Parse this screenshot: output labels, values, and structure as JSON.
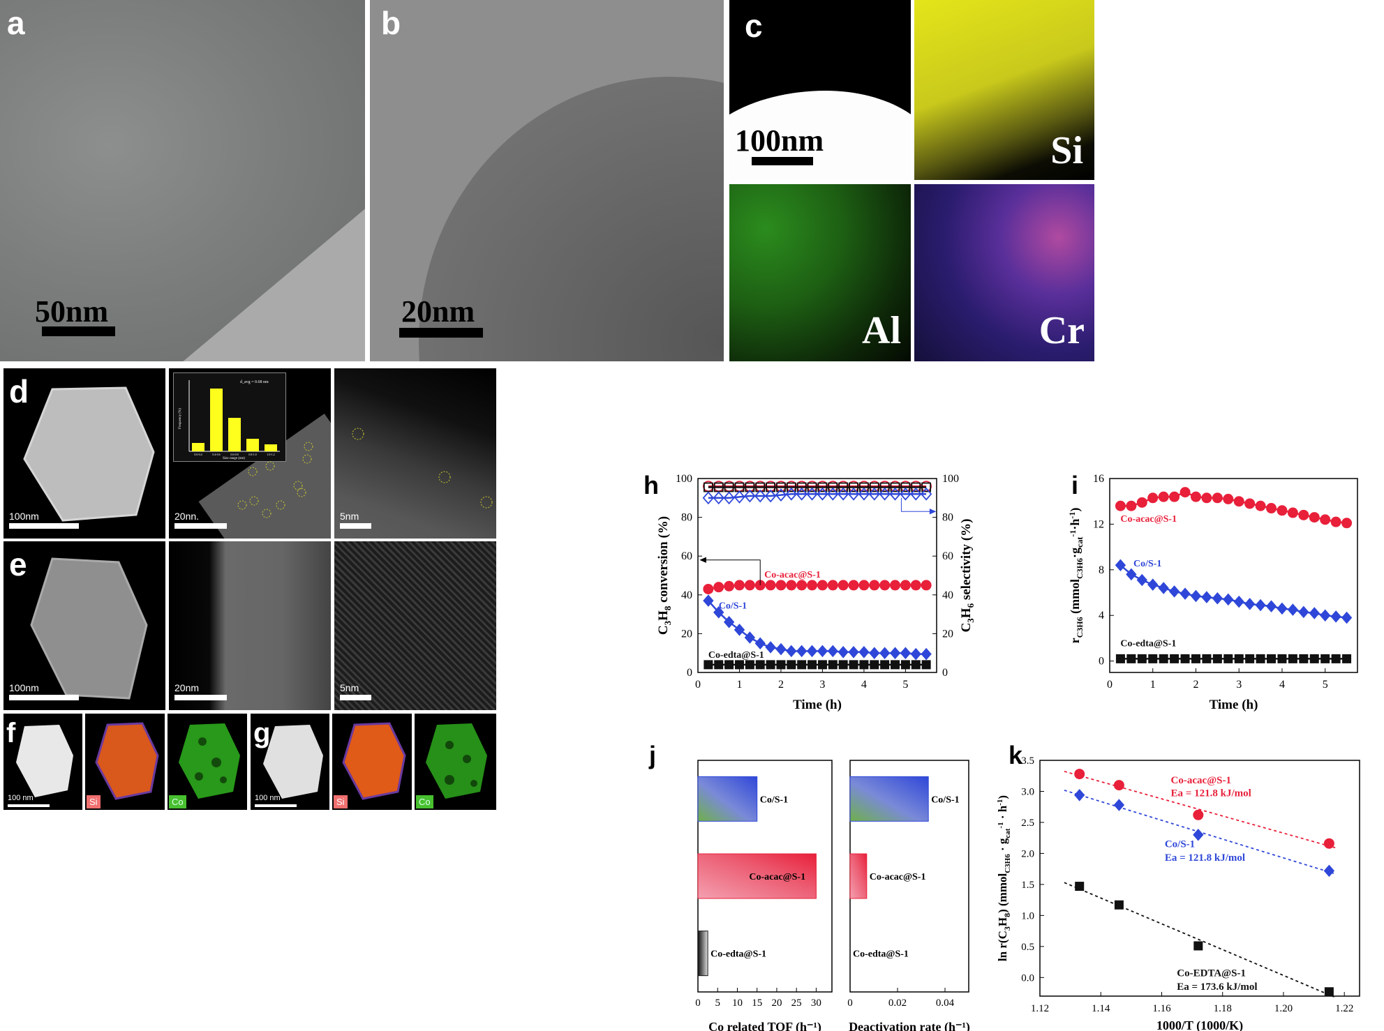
{
  "panels": {
    "a": {
      "label": "a",
      "scale": "50nm"
    },
    "b": {
      "label": "b",
      "scale": "20nm"
    },
    "c": {
      "label": "c",
      "scale": "100nm",
      "elements": [
        "Si",
        "Al",
        "Cr"
      ]
    },
    "d": {
      "label": "d",
      "scales": [
        "100nm",
        "20nn.",
        "5nm"
      ],
      "inset": {
        "annotation": "d_avg = 0.68 nm",
        "ylabel": "Frequency (%)",
        "xlabel": "Size range (nm)",
        "categories": [
          "0.0-0.4",
          "0.4-0.6",
          "0.6-0.8",
          "0.8-1.0",
          "1.0-1.2"
        ],
        "values": [
          6,
          45,
          24,
          9,
          5
        ]
      }
    },
    "e": {
      "label": "e",
      "scales": [
        "100nm",
        "20nm",
        "5nm"
      ]
    },
    "f": {
      "label": "f",
      "scale": "100 nm",
      "tags": [
        "Si",
        "Co"
      ]
    },
    "g": {
      "label": "g",
      "scale": "100 nm",
      "tags": [
        "Si",
        "Co"
      ]
    },
    "h": {
      "label": "h"
    },
    "i": {
      "label": "i"
    },
    "j": {
      "label": "j"
    },
    "k": {
      "label": "k"
    }
  },
  "colors": {
    "red": "#e8203a",
    "blue": "#2f47d8",
    "black": "#111111",
    "yellow": "#ffff1e",
    "green": "#3ec82a",
    "orange": "#e06a1c"
  },
  "chart_data": [
    {
      "id": "h",
      "type": "line",
      "xlabel": "Time (h)",
      "ylabel_left": "C3H8 conversion (%)",
      "ylabel_right": "C3H6 selectivity (%)",
      "xlim": [
        0,
        5.75
      ],
      "ylim": [
        0,
        100
      ],
      "xticks": [
        0,
        1,
        2,
        3,
        4,
        5
      ],
      "yticks": [
        0,
        20,
        40,
        60,
        80,
        100
      ],
      "x": [
        0.25,
        0.5,
        0.75,
        1.0,
        1.25,
        1.5,
        1.75,
        2.0,
        2.25,
        2.5,
        2.75,
        3.0,
        3.25,
        3.5,
        3.75,
        4.0,
        4.25,
        4.5,
        4.75,
        5.0,
        5.25,
        5.5
      ],
      "series": [
        {
          "name": "Co-acac@S-1",
          "axis": "left",
          "color": "#e8203a",
          "marker": "circle",
          "values": [
            43,
            44,
            44.5,
            45,
            45,
            45,
            45,
            45,
            45,
            45,
            45,
            45,
            45,
            45,
            45,
            45,
            45,
            45,
            45,
            45,
            45,
            45
          ]
        },
        {
          "name": "Co/S-1",
          "axis": "left",
          "color": "#2f47d8",
          "marker": "diamond",
          "values": [
            37,
            31,
            26,
            22,
            18,
            15,
            13,
            12,
            11,
            11,
            11,
            11,
            11,
            10.5,
            10.5,
            10.5,
            10,
            10,
            10,
            10,
            9.5,
            9.5
          ]
        },
        {
          "name": "Co-edta@S-1",
          "axis": "left",
          "color": "#111111",
          "marker": "square",
          "values": [
            4,
            4,
            4,
            4,
            4,
            4,
            4,
            4,
            4,
            4,
            4,
            4,
            4,
            4,
            4,
            4,
            4,
            4,
            4,
            4,
            4,
            4
          ]
        },
        {
          "name": "",
          "axis": "right",
          "color": "#e8203a",
          "marker": "circle-open",
          "values": [
            96,
            96,
            96,
            96,
            96,
            96,
            96,
            96,
            96,
            96,
            96,
            96,
            96,
            96,
            96,
            96,
            96,
            96,
            96,
            96,
            96,
            96
          ]
        },
        {
          "name": "",
          "axis": "right",
          "color": "#111111",
          "marker": "square-open",
          "values": [
            95.5,
            95.5,
            95.5,
            95.5,
            95.5,
            95.5,
            95.5,
            95.5,
            95.5,
            95.5,
            95.5,
            95.5,
            95.5,
            95.5,
            95.5,
            95.5,
            95.5,
            95.5,
            95.5,
            95.5,
            95.5,
            95.5
          ]
        },
        {
          "name": "",
          "axis": "right",
          "color": "#2f47d8",
          "marker": "diamond-open",
          "values": [
            90,
            90,
            90,
            90.5,
            91,
            91,
            91,
            91.5,
            92,
            92,
            92,
            92,
            92,
            92,
            92,
            92,
            92,
            92,
            92,
            92,
            92,
            92
          ]
        }
      ],
      "labels": [
        "Co-acac@S-1",
        "Co/S-1",
        "Co-edta@S-1"
      ]
    },
    {
      "id": "i",
      "type": "line",
      "xlabel": "Time (h)",
      "ylabel": "r C3H6 (mmol C3H6·g cat-1·h-1)",
      "xlim": [
        0,
        5.75
      ],
      "ylim": [
        -1,
        16
      ],
      "xticks": [
        0,
        1,
        2,
        3,
        4,
        5
      ],
      "yticks": [
        0,
        4,
        8,
        12,
        16
      ],
      "x": [
        0.25,
        0.5,
        0.75,
        1.0,
        1.25,
        1.5,
        1.75,
        2.0,
        2.25,
        2.5,
        2.75,
        3.0,
        3.25,
        3.5,
        3.75,
        4.0,
        4.25,
        4.5,
        4.75,
        5.0,
        5.25,
        5.5
      ],
      "series": [
        {
          "name": "Co-acac@S-1",
          "color": "#e8203a",
          "marker": "circle",
          "values": [
            13.6,
            13.6,
            13.9,
            14.3,
            14.4,
            14.4,
            14.8,
            14.4,
            14.3,
            14.3,
            14.2,
            14.0,
            13.8,
            13.6,
            13.4,
            13.2,
            13.0,
            12.8,
            12.6,
            12.4,
            12.2,
            12.1
          ]
        },
        {
          "name": "Co/S-1",
          "color": "#2f47d8",
          "marker": "diamond",
          "values": [
            8.4,
            7.6,
            7.1,
            6.7,
            6.4,
            6.1,
            5.9,
            5.7,
            5.6,
            5.5,
            5.4,
            5.2,
            5.0,
            4.9,
            4.8,
            4.6,
            4.5,
            4.3,
            4.2,
            4.0,
            3.9,
            3.8
          ]
        },
        {
          "name": "Co-edta@S-1",
          "color": "#111111",
          "marker": "square",
          "values": [
            0.2,
            0.2,
            0.2,
            0.2,
            0.2,
            0.2,
            0.2,
            0.2,
            0.2,
            0.2,
            0.2,
            0.2,
            0.2,
            0.2,
            0.2,
            0.2,
            0.2,
            0.2,
            0.2,
            0.2,
            0.2,
            0.2
          ]
        }
      ],
      "labels": [
        "Co-acac@S-1",
        "Co/S-1",
        "Co-edta@S-1"
      ]
    },
    {
      "id": "j1",
      "type": "bar",
      "orientation": "horizontal",
      "xlabel": "Co related TOF (h⁻¹)",
      "xlim": [
        0,
        34
      ],
      "xticks": [
        0,
        5,
        10,
        15,
        20,
        25,
        30
      ],
      "categories": [
        "Co/S-1",
        "Co-acac@S-1",
        "Co-edta@S-1"
      ],
      "values": [
        15,
        30,
        2.5
      ],
      "colors": [
        "#2f47d8",
        "#e8203a",
        "#111111"
      ]
    },
    {
      "id": "j2",
      "type": "bar",
      "orientation": "horizontal",
      "xlabel": "Deactivation rate (h⁻¹)",
      "xlim": [
        0,
        0.05
      ],
      "xticks": [
        0,
        0.02,
        0.04
      ],
      "categories": [
        "Co/S-1",
        "Co-acac@S-1",
        "Co-edta@S-1"
      ],
      "values": [
        0.033,
        0.007,
        0
      ],
      "colors": [
        "#2f47d8",
        "#e8203a",
        "#111111"
      ]
    },
    {
      "id": "k",
      "type": "scatter",
      "xlabel": "1000/T (1000/K)",
      "ylabel": "ln r(C3H8) (mmol C3H6 · g cat -1 · h-1)",
      "xlim": [
        1.12,
        1.225
      ],
      "ylim": [
        -0.3,
        3.5
      ],
      "xticks": [
        1.12,
        1.14,
        1.16,
        1.18,
        1.2,
        1.22
      ],
      "yticks": [
        0.0,
        0.5,
        1.0,
        1.5,
        2.0,
        2.5,
        3.0,
        3.5
      ],
      "series": [
        {
          "name": "Co-acac@S-1",
          "note": "Ea = 121.8 kJ/mol",
          "color": "#e8203a",
          "marker": "circle",
          "x": [
            1.133,
            1.146,
            1.172,
            1.215
          ],
          "y": [
            3.28,
            3.1,
            2.62,
            2.16
          ]
        },
        {
          "name": "Co/S-1",
          "note": "Ea = 121.8 kJ/mol",
          "color": "#2f47d8",
          "marker": "diamond",
          "x": [
            1.133,
            1.146,
            1.172,
            1.215
          ],
          "y": [
            2.94,
            2.78,
            2.3,
            1.72
          ]
        },
        {
          "name": "Co-EDTA@S-1",
          "note": "Ea = 173.6 kJ/mol",
          "color": "#111111",
          "marker": "square",
          "x": [
            1.133,
            1.146,
            1.172,
            1.215
          ],
          "y": [
            1.47,
            1.17,
            0.51,
            -0.23
          ]
        }
      ]
    }
  ]
}
